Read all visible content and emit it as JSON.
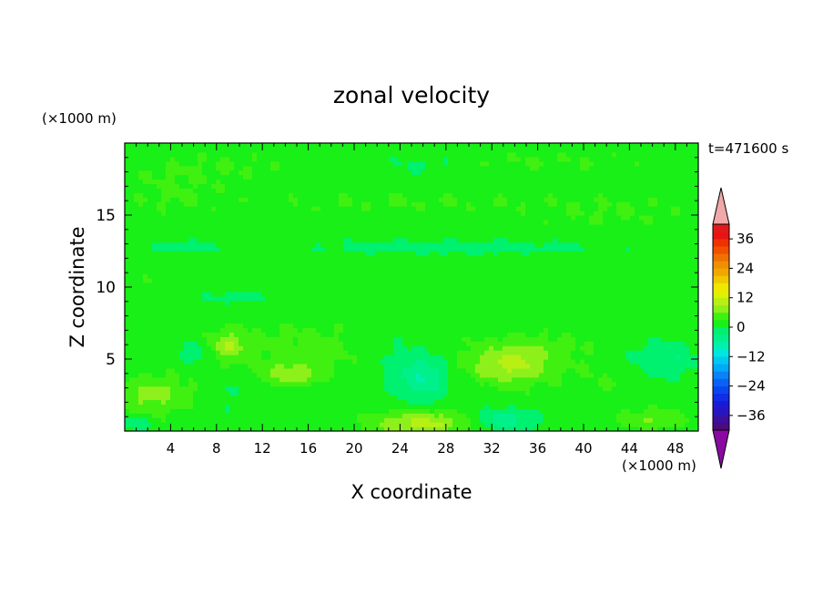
{
  "chart_data": {
    "type": "heatmap",
    "title": "zonal velocity",
    "xlabel": "X coordinate",
    "ylabel": "Z coordinate",
    "x_unit": "(×1000 m)",
    "y_unit": "(×1000 m)",
    "time_label": "t=471600 s",
    "xlim": [
      0,
      50
    ],
    "ylim": [
      0,
      20
    ],
    "x_ticks": [
      4,
      8,
      12,
      16,
      20,
      24,
      28,
      32,
      36,
      40,
      44,
      48
    ],
    "y_ticks": [
      5,
      10,
      15
    ],
    "colorbar": {
      "levels": [
        -42,
        -39,
        -36,
        -33,
        -30,
        -27,
        -24,
        -21,
        -18,
        -15,
        -12,
        -9,
        -6,
        -3,
        0,
        3,
        6,
        9,
        12,
        15,
        18,
        21,
        24,
        27,
        30,
        33,
        36,
        39,
        42
      ],
      "colors": [
        "#4b0a7d",
        "#3c0fa0",
        "#2a14c0",
        "#1a1ad6",
        "#0f2ee6",
        "#0a46f0",
        "#0a62f5",
        "#0a82f8",
        "#00a8fa",
        "#00c8f0",
        "#00e6e0",
        "#00f0b0",
        "#00f08c",
        "#00f070",
        "#18f018",
        "#40f010",
        "#8ef01a",
        "#b8f014",
        "#e0f000",
        "#f0e600",
        "#f0c800",
        "#f0a800",
        "#f09000",
        "#f07000",
        "#f05000",
        "#f03000",
        "#e81414",
        "#e01a1a"
      ],
      "under_color": "#8a0aa0",
      "over_color": "#f0a8a8",
      "tick_labels": [
        -36,
        -24,
        -12,
        0,
        12,
        24,
        36
      ]
    },
    "field": {
      "background": 1.5,
      "patches": [
        {
          "cx": 8,
          "cy": 18.3,
          "rx": 8,
          "ry": 1.2,
          "value": 3
        },
        {
          "cx": 35,
          "cy": 18.7,
          "rx": 12,
          "ry": 0.9,
          "value": 3
        },
        {
          "cx": 23,
          "cy": 16.0,
          "rx": 15,
          "ry": 0.8,
          "value": 3
        },
        {
          "cx": 43,
          "cy": 15.2,
          "rx": 8,
          "ry": 1.3,
          "value": 3
        },
        {
          "cx": 4,
          "cy": 16.5,
          "rx": 4,
          "ry": 1.5,
          "value": 3
        },
        {
          "cx": 26,
          "cy": 18.6,
          "rx": 4,
          "ry": 0.8,
          "value": -1
        },
        {
          "cx": 29,
          "cy": 12.8,
          "rx": 12,
          "ry": 0.5,
          "value": -2
        },
        {
          "cx": 5,
          "cy": 12.8,
          "rx": 3,
          "ry": 0.4,
          "value": -2
        },
        {
          "cx": 10,
          "cy": 9.3,
          "rx": 3,
          "ry": 0.4,
          "value": -2
        },
        {
          "cx": 3,
          "cy": 10.6,
          "rx": 1.8,
          "ry": 0.6,
          "value": 3
        },
        {
          "cx": 16,
          "cy": 5.7,
          "rx": 8,
          "ry": 1.9,
          "value": 4
        },
        {
          "cx": 36,
          "cy": 5.6,
          "rx": 5,
          "ry": 1.4,
          "value": 4
        },
        {
          "cx": 9,
          "cy": 6.0,
          "rx": 1.5,
          "ry": 1.0,
          "value": 8
        },
        {
          "cx": 14.5,
          "cy": 4.0,
          "rx": 2.5,
          "ry": 0.7,
          "value": 8
        },
        {
          "cx": 33.5,
          "cy": 4.6,
          "rx": 3.5,
          "ry": 1.3,
          "value": 9
        },
        {
          "cx": 26,
          "cy": 0.6,
          "rx": 4.5,
          "ry": 0.8,
          "value": 10
        },
        {
          "cx": 2.5,
          "cy": 2.5,
          "rx": 3,
          "ry": 1.3,
          "value": 7
        },
        {
          "cx": 46,
          "cy": 0.8,
          "rx": 3,
          "ry": 0.7,
          "value": 6
        },
        {
          "cx": 26,
          "cy": 3.8,
          "rx": 2.2,
          "ry": 1.6,
          "value": -6
        },
        {
          "cx": 33,
          "cy": 0.8,
          "rx": 3,
          "ry": 0.8,
          "value": -5
        },
        {
          "cx": 9.5,
          "cy": 2.5,
          "rx": 2,
          "ry": 1.5,
          "value": 0
        },
        {
          "cx": 22.5,
          "cy": 5.5,
          "rx": 2.5,
          "ry": 2.0,
          "value": -1
        },
        {
          "cx": 47,
          "cy": 5.0,
          "rx": 3,
          "ry": 1.3,
          "value": -3
        },
        {
          "cx": 6,
          "cy": 5.5,
          "rx": 1.5,
          "ry": 0.8,
          "value": -3
        },
        {
          "cx": 1,
          "cy": 0.5,
          "rx": 1.2,
          "ry": 0.5,
          "value": -3
        },
        {
          "cx": 42,
          "cy": 3.5,
          "rx": 3,
          "ry": 1.2,
          "value": 3
        }
      ]
    }
  }
}
